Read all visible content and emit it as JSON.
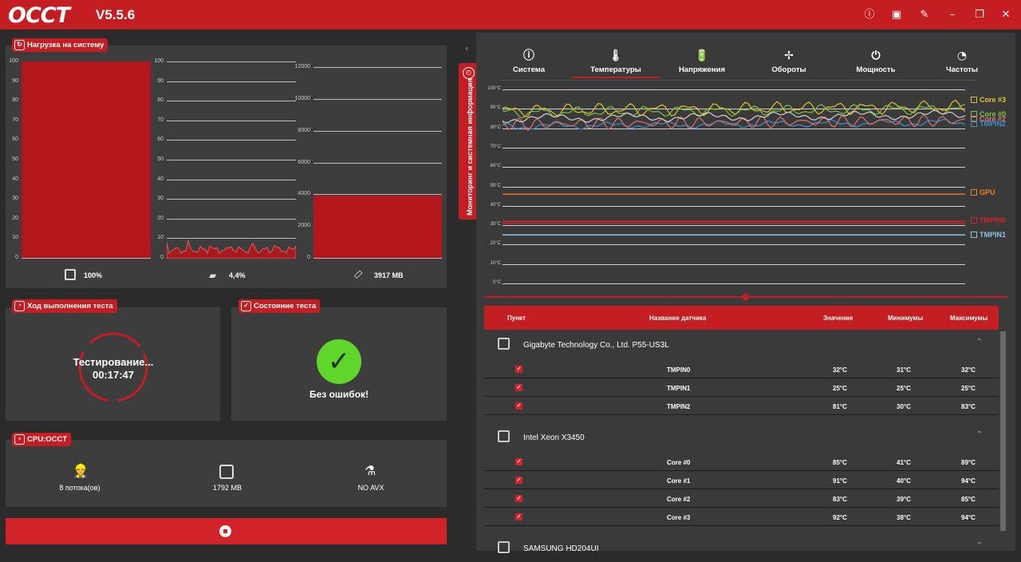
{
  "app": {
    "logo": "OCCT",
    "version": "V5.5.6"
  },
  "titlebar_icons": [
    "info-icon",
    "camera-icon",
    "wrench-icon",
    "minimize-icon",
    "restore-icon",
    "close-icon"
  ],
  "load_panel": {
    "title": "Нагрузка на систему",
    "cpu": {
      "value_pct": 100,
      "label": "100%",
      "ticks": [
        "100",
        "90",
        "80",
        "70",
        "60",
        "50",
        "40",
        "30",
        "20",
        "10",
        "0"
      ]
    },
    "gpu": {
      "value_pct": 4.4,
      "label": "4,4%",
      "ticks": [
        "100",
        "90",
        "80",
        "70",
        "60",
        "50",
        "40",
        "30",
        "20",
        "10",
        "0"
      ]
    },
    "ram": {
      "value_mb": 3917,
      "label": "3917 MB",
      "max": 12000,
      "ticks": [
        "12000",
        "10000",
        "8000",
        "6000",
        "4000",
        "2000",
        "0"
      ]
    }
  },
  "progress_panel": {
    "title": "Ход выполнения теста",
    "status": "Тестирование...",
    "time": "00:17:47"
  },
  "state_panel": {
    "title": "Состояние теста",
    "status": "Без ошибок!"
  },
  "cpu_panel": {
    "title": "CPU:OCCT",
    "threads": "8 потока(ов)",
    "memory": "1792 MB",
    "instr": "NO AVX"
  },
  "side_tab": {
    "label": "Мониторинг и системная информация"
  },
  "tabs": [
    {
      "label": "Система",
      "icon": "ⓘ"
    },
    {
      "label": "Температуры",
      "icon": "🌡"
    },
    {
      "label": "Напряжения",
      "icon": "🔋"
    },
    {
      "label": "Обороты",
      "icon": "✢"
    },
    {
      "label": "Мощность",
      "icon": "⏻"
    },
    {
      "label": "Частоты",
      "icon": "◔"
    }
  ],
  "temp_chart": {
    "yticks": [
      "100°C",
      "90°C",
      "80°C",
      "70°C",
      "60°C",
      "50°C",
      "40°C",
      "30°C",
      "20°C",
      "10°C",
      "0°C"
    ],
    "legend": [
      {
        "name": "Core #3",
        "color": "#e6c229"
      },
      {
        "name": "Core #0",
        "color": "#7bc142"
      },
      {
        "name": "Core #2",
        "color": "#e07070"
      },
      {
        "name": "TMPIN2",
        "color": "#3a8fd6"
      },
      {
        "name": "GPU",
        "color": "#f0821e"
      },
      {
        "name": "TMPIN0",
        "color": "#d22428"
      },
      {
        "name": "TMPIN1",
        "color": "#8ec5e6"
      }
    ]
  },
  "table": {
    "headers": {
      "item": "Пункт",
      "sensor": "Название датчика",
      "value": "Значение",
      "min": "Минимумы",
      "max": "Максимумы"
    },
    "groups": [
      {
        "name": "Gigabyte Technology Co., Ltd. P55-US3L",
        "rows": [
          {
            "name": "TMPIN0",
            "value": "32°C",
            "min": "31°C",
            "max": "32°C"
          },
          {
            "name": "TMPIN1",
            "value": "25°C",
            "min": "25°C",
            "max": "25°C"
          },
          {
            "name": "TMPIN2",
            "value": "81°C",
            "min": "30°C",
            "max": "83°C"
          }
        ]
      },
      {
        "name": "Intel Xeon X3450",
        "rows": [
          {
            "name": "Core #0",
            "value": "85°C",
            "min": "41°C",
            "max": "89°C"
          },
          {
            "name": "Core #1",
            "value": "91°C",
            "min": "40°C",
            "max": "94°C"
          },
          {
            "name": "Core #2",
            "value": "83°C",
            "min": "39°C",
            "max": "85°C"
          },
          {
            "name": "Core #3",
            "value": "92°C",
            "min": "38°C",
            "max": "94°C"
          }
        ]
      },
      {
        "name": "SAMSUNG HD204UI",
        "rows": []
      }
    ]
  }
}
